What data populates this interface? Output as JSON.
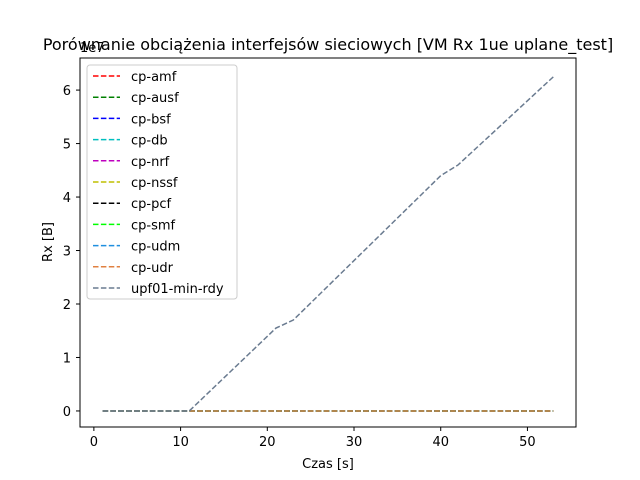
{
  "chart_data": {
    "type": "line",
    "title": "Porównanie obciążenia interfejsów sieciowych [VM Rx 1ue uplane_test]",
    "xlabel": "Czas [s]",
    "ylabel": "Rx [B]",
    "y_multiplier_label": "1e7",
    "xlim": [
      -1.6,
      55.6
    ],
    "ylim": [
      -0.3,
      6.6
    ],
    "x_ticks": [
      0,
      10,
      20,
      30,
      40,
      50
    ],
    "y_ticks": [
      0,
      1,
      2,
      3,
      4,
      5,
      6
    ],
    "x_tick_labels": [
      "0",
      "10",
      "20",
      "30",
      "40",
      "50"
    ],
    "y_tick_labels": [
      "0",
      "1",
      "2",
      "3",
      "4",
      "5",
      "6"
    ],
    "grid": false,
    "legend_position": "upper-left",
    "series": [
      {
        "name": "cp-amf",
        "color": "#ff0000",
        "dash": "dashed",
        "x": [
          1,
          53
        ],
        "y": [
          0,
          0
        ]
      },
      {
        "name": "cp-ausf",
        "color": "#008000",
        "dash": "dashed",
        "x": [
          1,
          53
        ],
        "y": [
          0,
          0
        ]
      },
      {
        "name": "cp-bsf",
        "color": "#0000ff",
        "dash": "dashed",
        "x": [
          1,
          53
        ],
        "y": [
          0,
          0
        ]
      },
      {
        "name": "cp-db",
        "color": "#00bfbf",
        "dash": "dashed",
        "x": [
          1,
          53
        ],
        "y": [
          0,
          0
        ]
      },
      {
        "name": "cp-nrf",
        "color": "#bf00bf",
        "dash": "dashed",
        "x": [
          1,
          53
        ],
        "y": [
          0,
          0
        ]
      },
      {
        "name": "cp-nssf",
        "color": "#bfbf00",
        "dash": "dashed",
        "x": [
          1,
          53
        ],
        "y": [
          0,
          0
        ]
      },
      {
        "name": "cp-pcf",
        "color": "#000000",
        "dash": "dashed",
        "x": [
          1,
          53
        ],
        "y": [
          0,
          0
        ]
      },
      {
        "name": "cp-smf",
        "color": "#00ff00",
        "dash": "dashed",
        "x": [
          1,
          53
        ],
        "y": [
          0,
          0
        ]
      },
      {
        "name": "cp-udm",
        "color": "#1f8fdf",
        "dash": "dashed",
        "x": [
          1,
          53
        ],
        "y": [
          0,
          0
        ]
      },
      {
        "name": "cp-udr",
        "color": "#e08040",
        "dash": "dashed",
        "x": [
          1,
          53
        ],
        "y": [
          0,
          0
        ]
      },
      {
        "name": "upf01-min-rdy",
        "color": "#6a7b90",
        "dash": "dashed",
        "x": [
          1,
          11,
          21,
          23,
          40,
          42,
          53
        ],
        "y": [
          0,
          0,
          1.55,
          1.7,
          4.4,
          4.6,
          6.25
        ]
      }
    ]
  }
}
